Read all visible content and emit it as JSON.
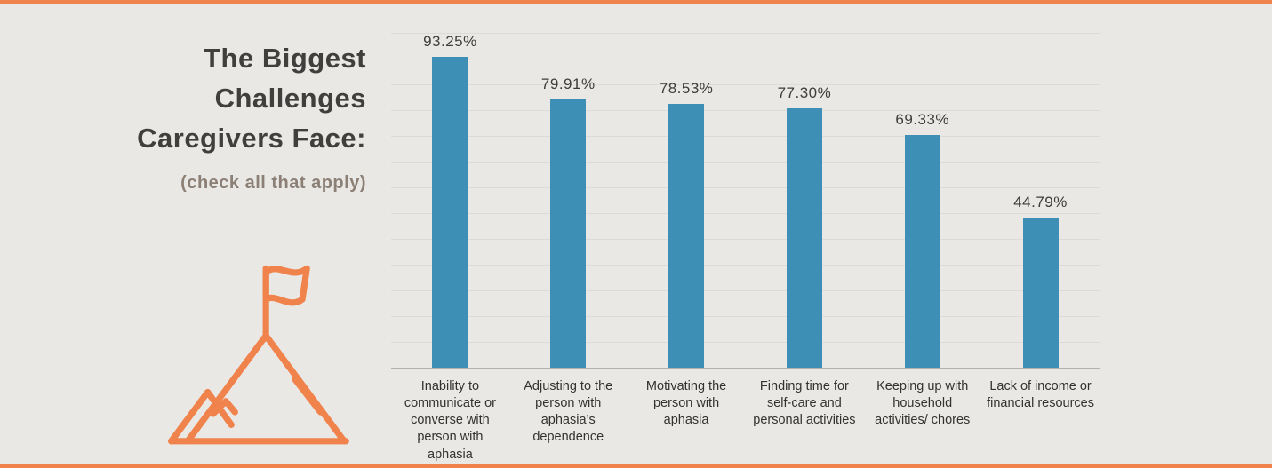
{
  "page": {
    "background": "#e9e8e5",
    "accent_color": "#f0824c"
  },
  "header": {
    "title": "The Biggest\nChallenges\nCaregivers Face:",
    "subtitle": "(check all that apply)"
  },
  "icons": {
    "mountain_flag": "mountain-with-flag-icon",
    "mountain_color": "#f0824c"
  },
  "chart_data": {
    "type": "bar",
    "title": "The Biggest Challenges Caregivers Face: (check all that apply)",
    "categories": [
      "Inability to communicate or converse with person with aphasia",
      "Adjusting to the person with aphasia’s dependence",
      "Motivating the person with aphasia",
      "Finding time for self-care and personal activities",
      "Keeping up with household activities/ chores",
      "Lack of income or financial resources"
    ],
    "values": [
      93.25,
      79.91,
      78.53,
      77.3,
      69.33,
      44.79
    ],
    "value_labels": [
      "93.25%",
      "79.91%",
      "78.53%",
      "77.30%",
      "69.33%",
      "44.79%"
    ],
    "xlabel": "",
    "ylabel": "",
    "ylim": [
      0,
      100
    ],
    "grid": true,
    "gridline_color": "#dcdbd8",
    "baseline_color": "#b5b2ae",
    "bar_color": "#3e8fb5",
    "legend": "none"
  }
}
